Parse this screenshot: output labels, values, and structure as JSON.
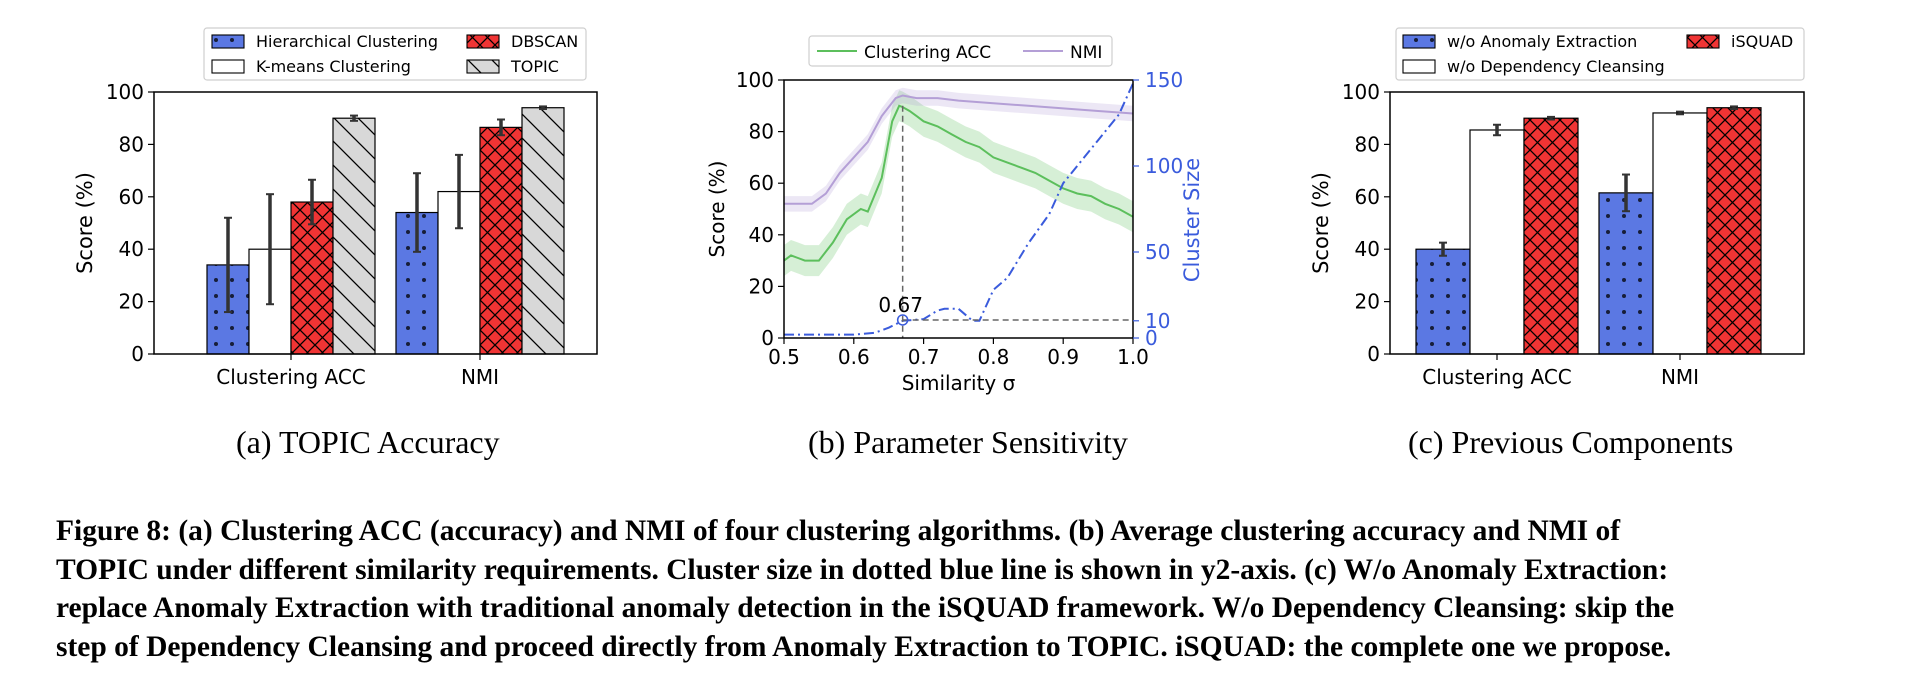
{
  "figure_caption": {
    "lines": [
      "Figure 8:   (a) Clustering ACC (accuracy) and NMI of four clustering algorithms.  (b) Average clustering accuracy and NMI of",
      "TOPIC under different similarity requirements.  Cluster size in dotted blue line is shown in y2-axis.  (c) W/o Anomaly Extraction:",
      "replace Anomaly Extraction with traditional anomaly detection in the iSQUAD framework.  W/o Dependency Cleansing: skip the",
      "step of Dependency Cleansing and proceed directly from Anomaly Extraction to TOPIC. iSQUAD: the complete one we propose."
    ]
  },
  "chart_data": [
    {
      "type": "bar",
      "caption": "(a) TOPIC Accuracy",
      "ylabel": "Score (%)",
      "ylim": [
        0,
        100
      ],
      "yticks": [
        "0",
        "20",
        "40",
        "60",
        "80",
        "100"
      ],
      "categories": [
        "Clustering ACC",
        "NMI"
      ],
      "legend_position": "top",
      "series": [
        {
          "name": "Hierarchical Clustering",
          "values": [
            34,
            54
          ],
          "err": [
            18,
            15
          ],
          "fill": "#5b78e3",
          "pattern": "dots"
        },
        {
          "name": "K-means Clustering",
          "values": [
            40,
            62
          ],
          "err": [
            21,
            14
          ],
          "fill": "#ffffff",
          "pattern": "none"
        },
        {
          "name": "DBSCAN",
          "values": [
            58,
            86.5
          ],
          "err": [
            8.5,
            3
          ],
          "fill": "#f03434",
          "pattern": "cross"
        },
        {
          "name": "TOPIC",
          "values": [
            90,
            94
          ],
          "err": [
            1,
            0.5
          ],
          "fill": "#d8d8d8",
          "pattern": "diag"
        }
      ]
    },
    {
      "type": "line",
      "caption": "(b) Parameter Sensitivity",
      "xlabel": "Similarity σ",
      "ylabel": "Score (%)",
      "y2label": "Cluster Size",
      "xlim": [
        0.5,
        1.0
      ],
      "ylim": [
        0,
        100
      ],
      "y2lim": [
        0,
        150
      ],
      "xticks": [
        "0.5",
        "0.6",
        "0.7",
        "0.8",
        "0.9",
        "1.0"
      ],
      "yticks": [
        "0",
        "20",
        "40",
        "60",
        "80",
        "100"
      ],
      "y2ticks": [
        "0",
        "10",
        "50",
        "100",
        "150"
      ],
      "annotation": {
        "label": "0.67",
        "x": 0.67,
        "y": 7
      },
      "legend_position": "top",
      "series": [
        {
          "name": "Clustering ACC",
          "color": "#5cbf5c",
          "x": [
            0.5,
            0.51,
            0.52,
            0.53,
            0.55,
            0.57,
            0.59,
            0.61,
            0.62,
            0.64,
            0.655,
            0.665,
            0.67,
            0.68,
            0.69,
            0.7,
            0.72,
            0.74,
            0.76,
            0.78,
            0.8,
            0.82,
            0.84,
            0.86,
            0.88,
            0.9,
            0.92,
            0.94,
            0.96,
            0.98,
            1.0
          ],
          "y": [
            30,
            32,
            31,
            30,
            30,
            37,
            46,
            50,
            49,
            62,
            84,
            90,
            89.5,
            88,
            86,
            84,
            82,
            79,
            76,
            74,
            70,
            68,
            66,
            64,
            61,
            58,
            56,
            55,
            52,
            50,
            47
          ],
          "band": 6
        },
        {
          "name": "NMI",
          "color": "#b49fd6",
          "x": [
            0.5,
            0.52,
            0.54,
            0.56,
            0.58,
            0.6,
            0.62,
            0.64,
            0.66,
            0.67,
            0.69,
            0.7,
            0.72,
            0.75,
            0.8,
            0.85,
            0.9,
            0.95,
            1.0
          ],
          "y": [
            52,
            52,
            52,
            56,
            64,
            70,
            76,
            86,
            93,
            94,
            93,
            93,
            93,
            92,
            91,
            90,
            89,
            88,
            87
          ],
          "band": 3
        },
        {
          "name": "Cluster Size",
          "color": "#3a5bdc",
          "axis": "y2",
          "x": [
            0.5,
            0.55,
            0.6,
            0.63,
            0.65,
            0.67,
            0.7,
            0.72,
            0.73,
            0.75,
            0.77,
            0.78,
            0.8,
            0.82,
            0.85,
            0.88,
            0.9,
            0.92,
            0.95,
            0.98,
            1.0
          ],
          "y": [
            2,
            2,
            2,
            3,
            6,
            10,
            11,
            16,
            17,
            17,
            10,
            10,
            28,
            35,
            55,
            72,
            90,
            100,
            115,
            130,
            148
          ]
        }
      ]
    },
    {
      "type": "bar",
      "caption": "(c) Previous Components",
      "ylabel": "Score (%)",
      "ylim": [
        0,
        100
      ],
      "yticks": [
        "0",
        "20",
        "40",
        "60",
        "80",
        "100"
      ],
      "categories": [
        "Clustering ACC",
        "NMI"
      ],
      "legend_position": "top",
      "series": [
        {
          "name": "w/o Anomaly Extraction",
          "values": [
            40,
            61.5
          ],
          "err": [
            2.5,
            7
          ],
          "fill": "#5b78e3",
          "pattern": "dots"
        },
        {
          "name": "w/o Dependency Cleansing",
          "values": [
            85.5,
            92
          ],
          "err": [
            2,
            0.5
          ],
          "fill": "#ffffff",
          "pattern": "none"
        },
        {
          "name": "iSQUAD",
          "values": [
            90,
            94
          ],
          "err": [
            0.5,
            0.5
          ],
          "fill": "#f03434",
          "pattern": "cross"
        }
      ]
    }
  ]
}
